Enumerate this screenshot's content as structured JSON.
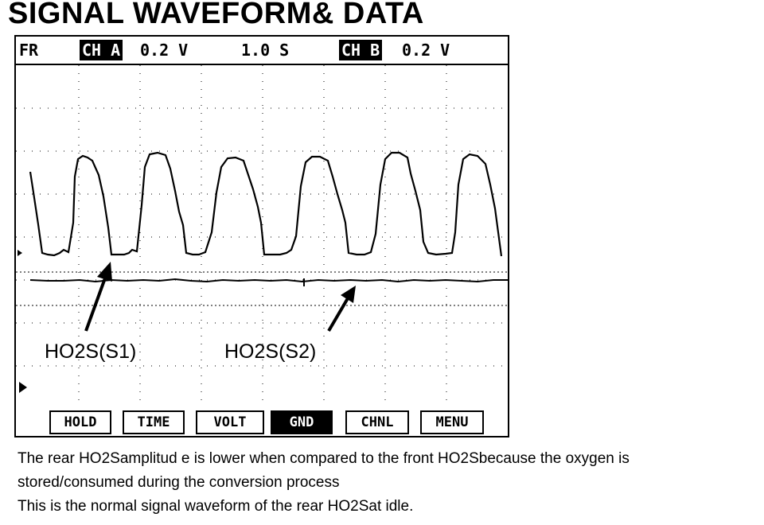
{
  "page_title": "SIGNAL WAVEFORM& DATA",
  "scope": {
    "fr_label": "FR",
    "ch_a": {
      "label": "CH A",
      "volts": "0.2 V"
    },
    "timebase": "1.0 S",
    "ch_b": {
      "label": "CH B",
      "volts": "0.2 V"
    },
    "annotations": {
      "s1": "HO2S(S1)",
      "s2": "HO2S(S2)"
    },
    "buttons": {
      "hold": "HOLD",
      "time": "TIME",
      "volt": "VOLT",
      "gnd": "GND",
      "chnl": "CHNL",
      "menu": "MENU"
    },
    "active_button": "GND"
  },
  "caption": {
    "line1": "The rear HO2Samplitud e is lower when compared to the front HO2Sbecause the oxygen is",
    "line2": "stored/consumed during the conversion process",
    "line3": "This is the normal signal waveform of the rear HO2Sat idle."
  }
}
